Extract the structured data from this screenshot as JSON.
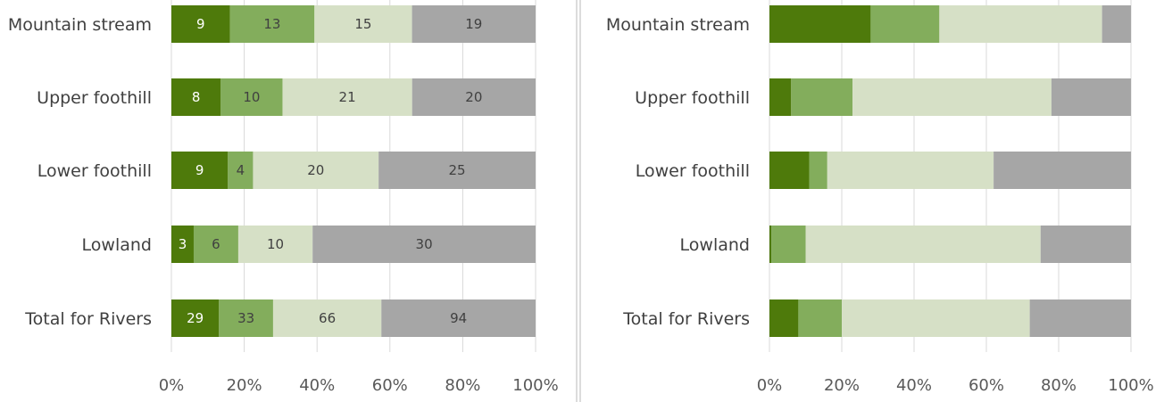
{
  "chart_data": [
    {
      "type": "bar",
      "orientation": "horizontal",
      "stacked": "percent",
      "categories": [
        "Mountain stream",
        "Upper foothill",
        "Lower foothill",
        "Lowland",
        "Total for  Rivers"
      ],
      "series": [
        {
          "color": "#4e7a0b",
          "values": [
            9,
            8,
            9,
            3,
            29
          ]
        },
        {
          "color": "#83ad5c",
          "values": [
            13,
            10,
            4,
            6,
            33
          ]
        },
        {
          "color": "#d6e0c6",
          "values": [
            15,
            21,
            20,
            10,
            66
          ]
        },
        {
          "color": "#a6a6a6",
          "values": [
            19,
            20,
            25,
            30,
            94
          ]
        }
      ],
      "data_labels": true,
      "x_ticks": [
        "0%",
        "20%",
        "40%",
        "60%",
        "80%",
        "100%"
      ],
      "xlim": [
        0,
        100
      ],
      "grid": "vertical"
    },
    {
      "type": "bar",
      "orientation": "horizontal",
      "stacked": "percent",
      "categories": [
        "Mountain stream",
        "Upper foothill",
        "Lower foothill",
        "Lowland",
        "Total for  Rivers"
      ],
      "series": [
        {
          "color": "#4e7a0b",
          "values": [
            28,
            6,
            11,
            0.5,
            8
          ]
        },
        {
          "color": "#83ad5c",
          "values": [
            19,
            17,
            5,
            9.5,
            12
          ]
        },
        {
          "color": "#d6e0c6",
          "values": [
            45,
            55,
            46,
            65,
            52
          ]
        },
        {
          "color": "#a6a6a6",
          "values": [
            8,
            22,
            38,
            25,
            28
          ]
        }
      ],
      "data_labels": false,
      "x_ticks": [
        "0%",
        "20%",
        "40%",
        "60%",
        "80%",
        "100%"
      ],
      "xlim": [
        0,
        100
      ],
      "grid": "vertical"
    }
  ]
}
